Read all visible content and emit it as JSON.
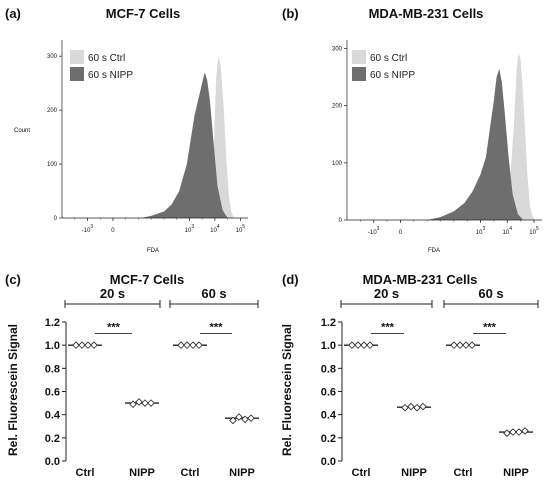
{
  "colors": {
    "ctrl_fill": "#d9d9d9",
    "nipp_fill": "#6e6e6e",
    "axis": "#222222",
    "marker_edge": "#222222",
    "marker_fill": "#ffffff"
  },
  "chart_data": [
    {
      "panel": "(a)",
      "title": "MCF-7 Cells",
      "type": "area",
      "xlabel": "FDA",
      "ylabel": "Count",
      "yticks": [
        "0",
        "100",
        "200",
        "300"
      ],
      "ylim": [
        0,
        330
      ],
      "xlim": [
        -2,
        5.3
      ],
      "xticks": [
        {
          "base": "-10",
          "exp": "3",
          "pos": -1
        },
        {
          "base": "0",
          "exp": "",
          "pos": 0
        },
        {
          "base": "10",
          "exp": "3",
          "pos": 3
        },
        {
          "base": "10",
          "exp": "4",
          "pos": 4
        },
        {
          "base": "10",
          "exp": "5",
          "pos": 5
        }
      ],
      "legend": [
        "60 s Ctrl",
        "60 s NIPP"
      ],
      "series": [
        {
          "name": "60 s Ctrl",
          "color": "#d9d9d9",
          "x": [
            3.6,
            3.75,
            3.85,
            3.95,
            4.0,
            4.05,
            4.1,
            4.15,
            4.2,
            4.25,
            4.35,
            4.45,
            4.55,
            4.65,
            4.75
          ],
          "y": [
            0,
            10,
            40,
            100,
            190,
            260,
            285,
            300,
            290,
            270,
            200,
            110,
            40,
            10,
            0
          ]
        },
        {
          "name": "60 s NIPP",
          "color": "#6e6e6e",
          "x": [
            1.1,
            1.5,
            2.0,
            2.3,
            2.6,
            2.9,
            3.0,
            3.2,
            3.4,
            3.55,
            3.6,
            3.7,
            3.8,
            3.95,
            4.1,
            4.3,
            4.5
          ],
          "y": [
            0,
            4,
            12,
            25,
            50,
            100,
            130,
            190,
            230,
            260,
            270,
            255,
            220,
            140,
            60,
            15,
            0
          ]
        }
      ]
    },
    {
      "panel": "(b)",
      "title": "MDA-MB-231 Cells",
      "type": "area",
      "xlabel": "FDA",
      "ylabel": "Count",
      "yticks": [
        "0",
        "100",
        "200",
        "300"
      ],
      "ylim": [
        0,
        315
      ],
      "xlim": [
        -2,
        5.3
      ],
      "xticks": [
        {
          "base": "-10",
          "exp": "3",
          "pos": -1
        },
        {
          "base": "0",
          "exp": "",
          "pos": 0
        },
        {
          "base": "10",
          "exp": "3",
          "pos": 3
        },
        {
          "base": "10",
          "exp": "4",
          "pos": 4
        },
        {
          "base": "10",
          "exp": "5",
          "pos": 5
        }
      ],
      "legend": [
        "60 s Ctrl",
        "60 s NIPP"
      ],
      "series": [
        {
          "name": "60 s Ctrl",
          "color": "#d9d9d9",
          "x": [
            3.8,
            3.95,
            4.05,
            4.15,
            4.25,
            4.35,
            4.4,
            4.45,
            4.5,
            4.55,
            4.65,
            4.75,
            4.85,
            4.95,
            5.05
          ],
          "y": [
            0,
            10,
            40,
            100,
            170,
            260,
            285,
            290,
            280,
            250,
            170,
            80,
            25,
            5,
            0
          ]
        },
        {
          "name": "60 s NIPP",
          "color": "#6e6e6e",
          "x": [
            1.0,
            1.5,
            2.0,
            2.4,
            2.7,
            3.0,
            3.2,
            3.35,
            3.5,
            3.6,
            3.7,
            3.8,
            3.9,
            4.05,
            4.2,
            4.4,
            4.6
          ],
          "y": [
            0,
            5,
            15,
            30,
            50,
            80,
            110,
            160,
            210,
            250,
            265,
            240,
            190,
            110,
            45,
            10,
            0
          ]
        }
      ]
    },
    {
      "panel": "(c)",
      "title": "MCF-7 Cells",
      "type": "scatter",
      "ylabel": "Rel. Fluorescein Signal",
      "ylim": [
        0,
        1.2
      ],
      "yticks": [
        "0.0",
        "0.2",
        "0.4",
        "0.6",
        "0.8",
        "1.0",
        "1.2"
      ],
      "categories": [
        "Ctrl",
        "NIPP",
        "Ctrl",
        "NIPP"
      ],
      "groups": [
        {
          "label": "20 s"
        },
        {
          "label": "60 s"
        }
      ],
      "significance": [
        "***",
        "***"
      ],
      "points": [
        {
          "values": [
            1.0,
            1.0,
            1.0,
            1.0
          ],
          "mean": 1.0
        },
        {
          "values": [
            0.49,
            0.51,
            0.5,
            0.5
          ],
          "mean": 0.5
        },
        {
          "values": [
            1.0,
            1.0,
            1.0,
            1.0
          ],
          "mean": 1.0
        },
        {
          "values": [
            0.35,
            0.38,
            0.36,
            0.37
          ],
          "mean": 0.37
        }
      ]
    },
    {
      "panel": "(d)",
      "title": "MDA-MB-231 Cells",
      "type": "scatter",
      "ylabel": "Rel. Fluorescein Signal",
      "ylim": [
        0,
        1.2
      ],
      "yticks": [
        "0.0",
        "0.2",
        "0.4",
        "0.6",
        "0.8",
        "1.0",
        "1.2"
      ],
      "categories": [
        "Ctrl",
        "NIPP",
        "Ctrl",
        "NIPP"
      ],
      "groups": [
        {
          "label": "20 s"
        },
        {
          "label": "60 s"
        }
      ],
      "significance": [
        "***",
        "***"
      ],
      "points": [
        {
          "values": [
            1.0,
            1.0,
            1.0,
            1.0
          ],
          "mean": 1.0
        },
        {
          "values": [
            0.46,
            0.47,
            0.46,
            0.47
          ],
          "mean": 0.465
        },
        {
          "values": [
            1.0,
            1.0,
            1.0,
            1.0
          ],
          "mean": 1.0
        },
        {
          "values": [
            0.24,
            0.25,
            0.25,
            0.26
          ],
          "mean": 0.25
        }
      ]
    }
  ]
}
